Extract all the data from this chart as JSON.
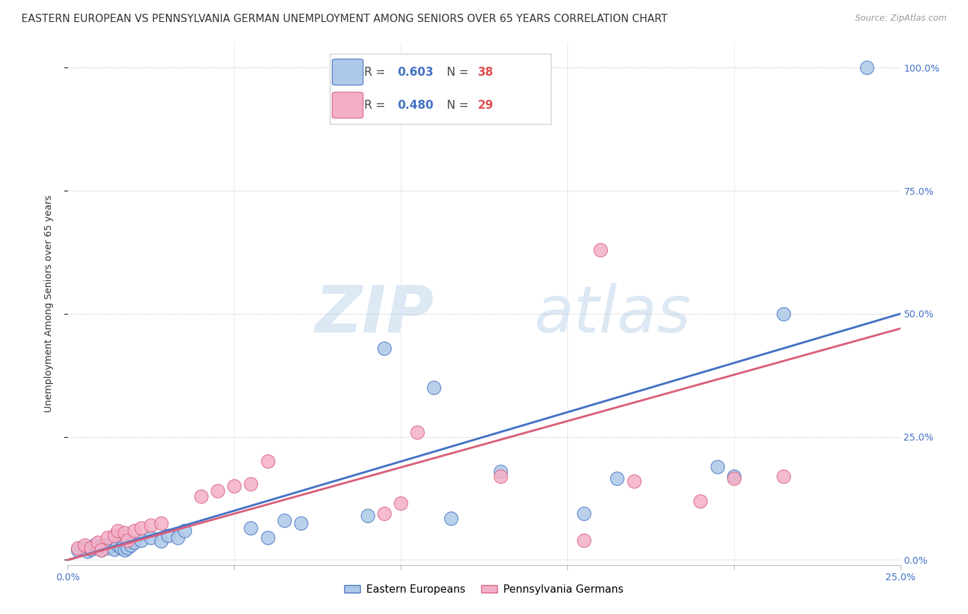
{
  "title": "EASTERN EUROPEAN VS PENNSYLVANIA GERMAN UNEMPLOYMENT AMONG SENIORS OVER 65 YEARS CORRELATION CHART",
  "source": "Source: ZipAtlas.com",
  "ylabel": "Unemployment Among Seniors over 65 years",
  "xlim": [
    0.0,
    0.25
  ],
  "ylim": [
    -0.01,
    1.05
  ],
  "yticks": [
    0.0,
    0.25,
    0.5,
    0.75,
    1.0
  ],
  "ytick_labels": [
    "0.0%",
    "25.0%",
    "50.0%",
    "75.0%",
    "100.0%"
  ],
  "xticks": [
    0.0,
    0.05,
    0.1,
    0.15,
    0.2,
    0.25
  ],
  "xtick_labels": [
    "0.0%",
    "",
    "",
    "",
    "",
    "25.0%"
  ],
  "blue_R": 0.603,
  "blue_N": 38,
  "pink_R": 0.48,
  "pink_N": 29,
  "blue_color": "#adc8e8",
  "pink_color": "#f4afc8",
  "blue_line_color": "#4472c4",
  "pink_line_color": "#d9607a",
  "blue_N_color": "#e05050",
  "pink_N_color": "#e05050",
  "blue_R_color": "#4472c4",
  "pink_R_color": "#4472c4",
  "blue_scatter_x": [
    0.003,
    0.005,
    0.006,
    0.007,
    0.008,
    0.009,
    0.01,
    0.011,
    0.012,
    0.013,
    0.014,
    0.015,
    0.016,
    0.017,
    0.018,
    0.019,
    0.02,
    0.022,
    0.025,
    0.028,
    0.03,
    0.033,
    0.035,
    0.055,
    0.06,
    0.065,
    0.07,
    0.09,
    0.095,
    0.11,
    0.115,
    0.13,
    0.155,
    0.165,
    0.195,
    0.2,
    0.215,
    0.24
  ],
  "blue_scatter_y": [
    0.02,
    0.025,
    0.018,
    0.022,
    0.03,
    0.025,
    0.02,
    0.03,
    0.025,
    0.028,
    0.022,
    0.03,
    0.025,
    0.02,
    0.025,
    0.03,
    0.035,
    0.04,
    0.045,
    0.038,
    0.05,
    0.045,
    0.06,
    0.065,
    0.045,
    0.08,
    0.075,
    0.09,
    0.43,
    0.35,
    0.085,
    0.18,
    0.095,
    0.165,
    0.19,
    0.17,
    0.5,
    1.0
  ],
  "pink_scatter_x": [
    0.003,
    0.005,
    0.007,
    0.009,
    0.01,
    0.012,
    0.014,
    0.015,
    0.017,
    0.018,
    0.02,
    0.022,
    0.025,
    0.028,
    0.04,
    0.045,
    0.05,
    0.055,
    0.06,
    0.095,
    0.1,
    0.105,
    0.13,
    0.155,
    0.16,
    0.17,
    0.19,
    0.2,
    0.215
  ],
  "pink_scatter_y": [
    0.025,
    0.03,
    0.025,
    0.035,
    0.02,
    0.045,
    0.05,
    0.06,
    0.055,
    0.04,
    0.06,
    0.065,
    0.07,
    0.075,
    0.13,
    0.14,
    0.15,
    0.155,
    0.2,
    0.095,
    0.115,
    0.26,
    0.17,
    0.04,
    0.63,
    0.16,
    0.12,
    0.165,
    0.17
  ],
  "blue_line_x": [
    0.0,
    0.25
  ],
  "blue_line_y": [
    0.0,
    0.5
  ],
  "pink_line_x": [
    0.0,
    0.25
  ],
  "pink_line_y": [
    0.0,
    0.47
  ],
  "watermark_zip": "ZIP",
  "watermark_atlas": "atlas",
  "background_color": "#ffffff",
  "title_fontsize": 11,
  "axis_label_fontsize": 10,
  "tick_fontsize": 10,
  "source_fontsize": 9,
  "legend_fontsize": 12
}
